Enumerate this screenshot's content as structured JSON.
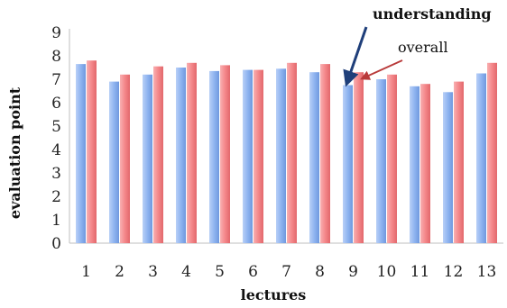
{
  "chart_data": {
    "type": "bar",
    "categories": [
      "1",
      "2",
      "3",
      "4",
      "5",
      "6",
      "7",
      "8",
      "9",
      "10",
      "11",
      "12",
      "13"
    ],
    "series": [
      {
        "name": "understanding",
        "color": "#8fb4f0",
        "values": [
          7.65,
          6.9,
          7.2,
          7.5,
          7.35,
          7.4,
          7.45,
          7.3,
          6.75,
          7.0,
          6.7,
          6.45,
          7.25
        ]
      },
      {
        "name": "overall",
        "color": "#f4878a",
        "values": [
          7.8,
          7.2,
          7.55,
          7.7,
          7.6,
          7.4,
          7.7,
          7.65,
          7.3,
          7.2,
          6.8,
          6.9,
          7.7
        ]
      }
    ],
    "xlabel": "lectures",
    "ylabel": "evaluation point",
    "ylim": [
      0,
      9
    ],
    "yticks": [
      "0",
      "1",
      "2",
      "3",
      "4",
      "5",
      "6",
      "7",
      "8",
      "9"
    ],
    "grid": false,
    "annotations": [
      {
        "text": "understanding",
        "series": "understanding",
        "arrow_color": "#1f3f7a"
      },
      {
        "text": "overall",
        "series": "overall",
        "arrow_color": "#b83a3a"
      }
    ]
  }
}
